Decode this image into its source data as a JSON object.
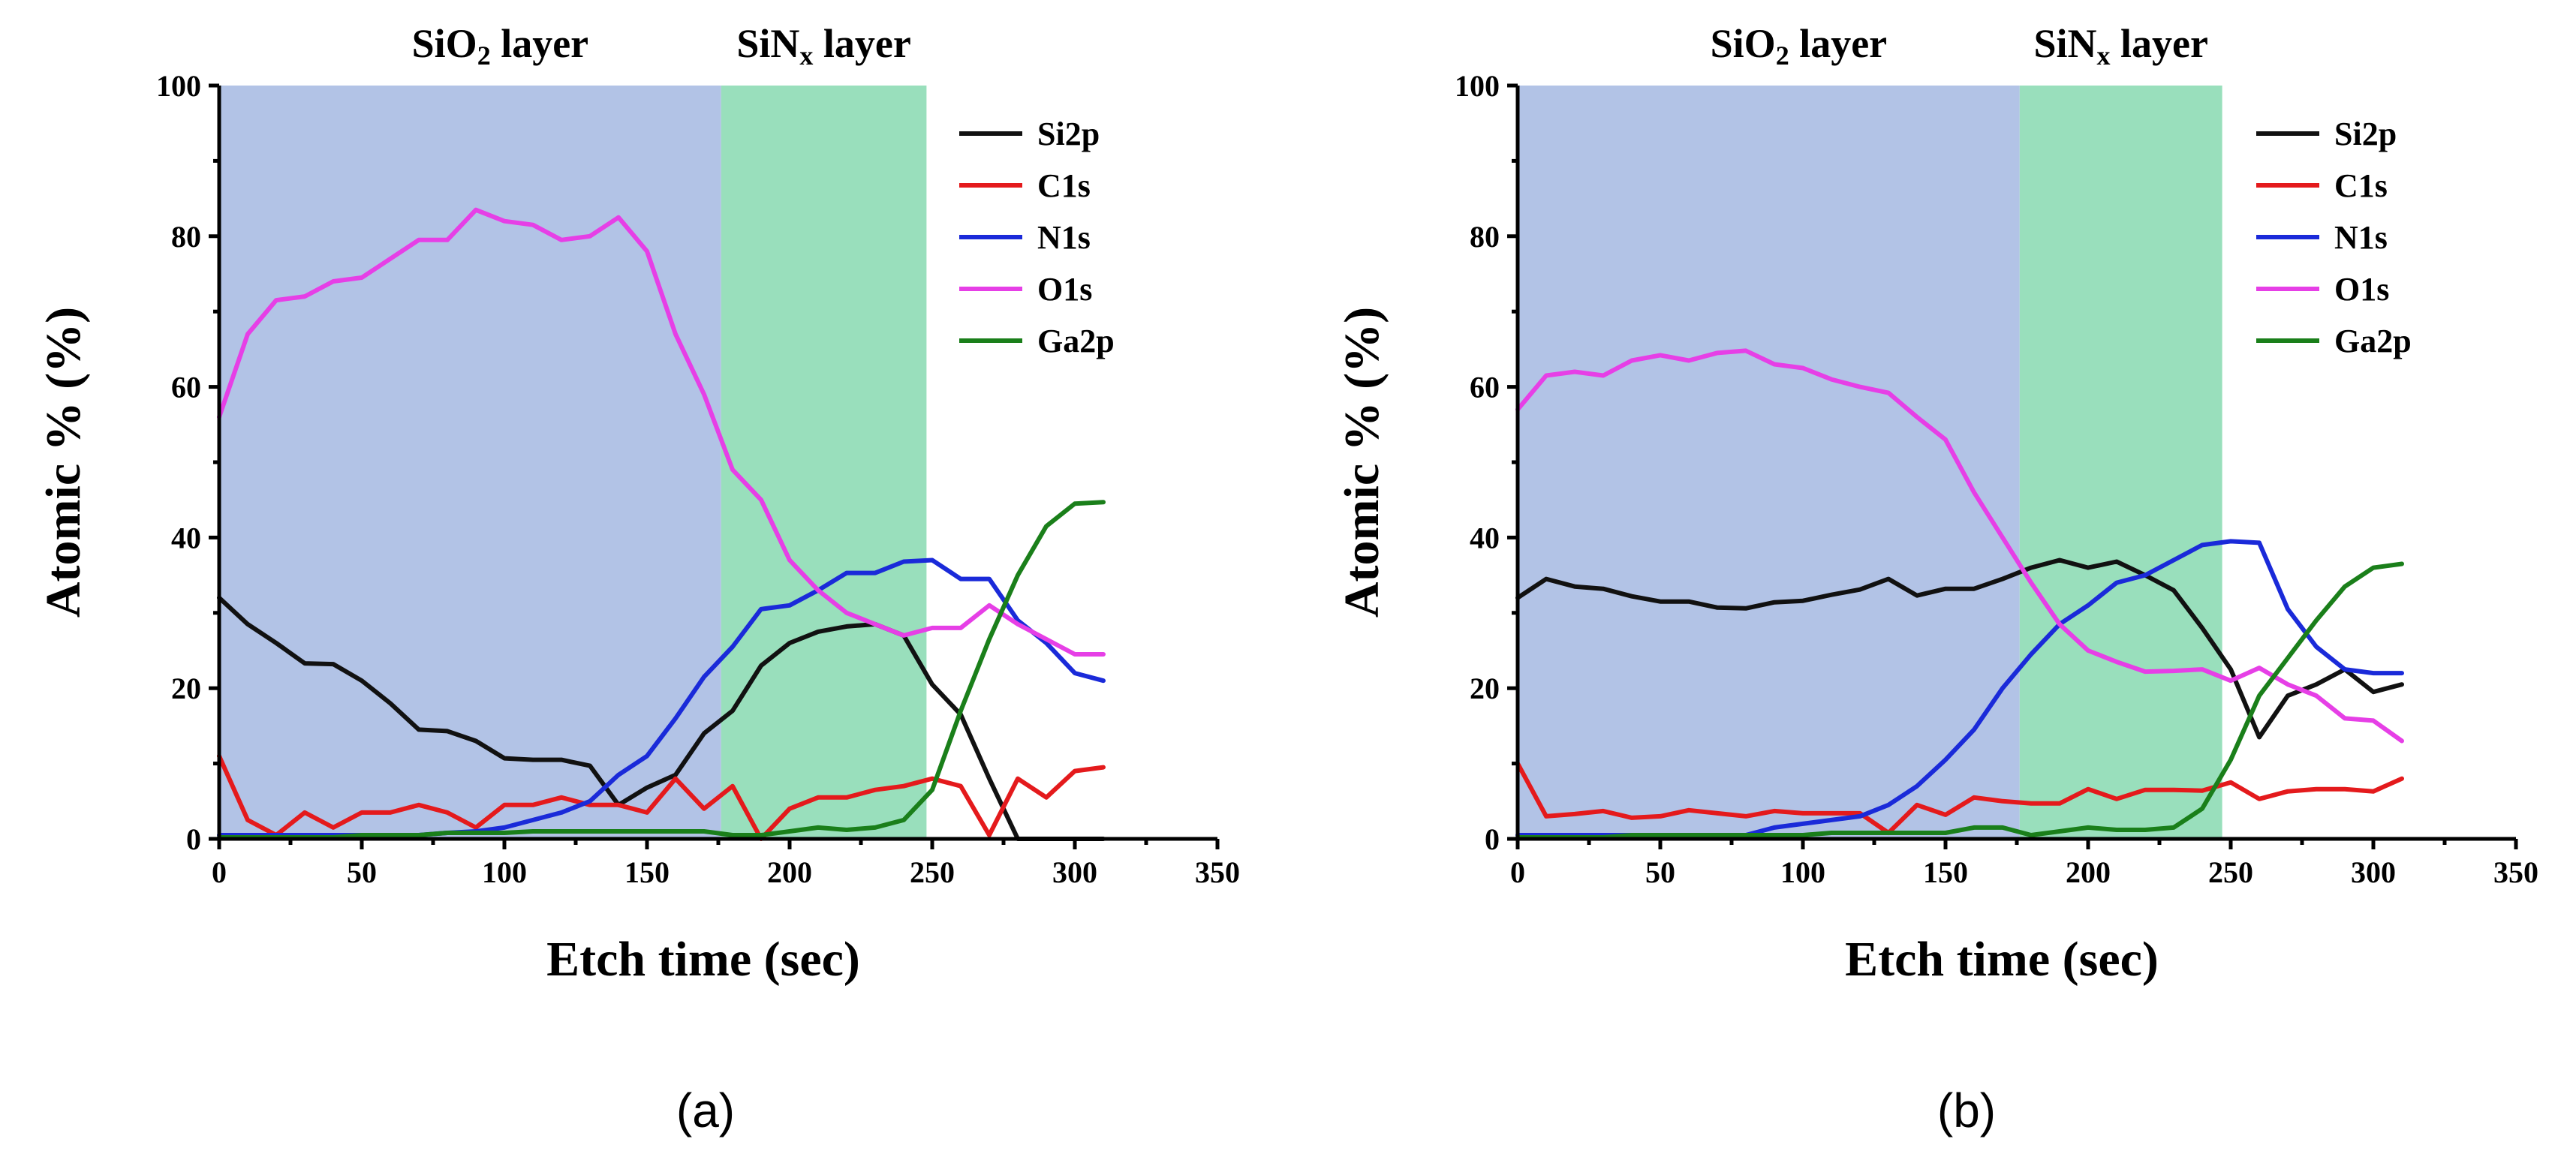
{
  "chart_data": [
    {
      "type": "line",
      "panel_label": "(a)",
      "xlabel": "Etch time (sec)",
      "ylabel": "Atomic % (%)",
      "xlim": [
        0,
        350
      ],
      "ylim": [
        0,
        100
      ],
      "xticks": [
        "0",
        "50",
        "100",
        "150",
        "200",
        "250",
        "300",
        "350"
      ],
      "yticks": [
        "0",
        "20",
        "40",
        "60",
        "80",
        "100"
      ],
      "regions": [
        {
          "label": "SiO",
          "sub": "2",
          "suffix": " layer",
          "x0": 0,
          "x1": 176,
          "color": "#b2c3e6"
        },
        {
          "label": "SiN",
          "sub": "x",
          "suffix": " layer",
          "x0": 176,
          "x1": 248,
          "color": "#99dfbc"
        }
      ],
      "legend_position": "top-right",
      "x": [
        0,
        10,
        20,
        30,
        40,
        50,
        60,
        70,
        80,
        90,
        100,
        110,
        120,
        130,
        140,
        150,
        160,
        170,
        180,
        190,
        200,
        210,
        220,
        230,
        240,
        250,
        260,
        270,
        280,
        290,
        300,
        310
      ],
      "series": [
        {
          "name": "Si2p",
          "color": "#111111",
          "values": [
            32,
            28.5,
            26,
            23.3,
            23.2,
            21,
            18,
            14.5,
            14.3,
            13,
            10.7,
            10.5,
            10.5,
            9.7,
            4.5,
            6.8,
            8.5,
            14,
            17,
            23,
            26,
            27.5,
            28.2,
            28.5,
            27,
            20.5,
            16.5,
            8,
            0,
            0,
            0,
            0
          ]
        },
        {
          "name": "C1s",
          "color": "#e41a1c",
          "values": [
            11,
            2.5,
            0.5,
            3.5,
            1.5,
            3.5,
            3.5,
            4.5,
            3.5,
            1.5,
            4.5,
            4.5,
            5.5,
            4.5,
            4.5,
            3.5,
            8,
            4,
            7,
            0,
            4,
            5.5,
            5.5,
            6.5,
            7,
            8,
            7,
            0.5,
            8,
            5.5,
            9,
            9.5
          ]
        },
        {
          "name": "N1s",
          "color": "#1a2ad9",
          "values": [
            0.5,
            0.5,
            0.5,
            0.5,
            0.5,
            0.5,
            0.5,
            0.5,
            0.8,
            1,
            1.5,
            2.5,
            3.5,
            5,
            8.5,
            11,
            16,
            21.5,
            25.5,
            30.5,
            31,
            33,
            35.3,
            35.3,
            36.8,
            37,
            34.5,
            34.5,
            29,
            26,
            22,
            21
          ]
        },
        {
          "name": "O1s",
          "color": "#e63fe6",
          "values": [
            56,
            67,
            71.5,
            72,
            74,
            74.5,
            77,
            79.5,
            79.5,
            83.5,
            82,
            81.5,
            79.5,
            80,
            82.5,
            78,
            67,
            59,
            49,
            45,
            37,
            33,
            30,
            28.5,
            27,
            28,
            28,
            31,
            28.5,
            26.5,
            24.5,
            24.5
          ]
        },
        {
          "name": "Ga2p",
          "color": "#1a7f1a",
          "values": [
            0.2,
            0.2,
            0.2,
            0.2,
            0.2,
            0.5,
            0.5,
            0.5,
            0.8,
            0.8,
            0.8,
            1,
            1,
            1,
            1,
            1,
            1,
            1,
            0.5,
            0.5,
            1,
            1.5,
            1.2,
            1.5,
            2.5,
            6.5,
            17,
            26.5,
            35,
            41.5,
            44.5,
            44.7
          ]
        }
      ]
    },
    {
      "type": "line",
      "panel_label": "(b)",
      "xlabel": "Etch time (sec)",
      "ylabel": "Atomic % (%)",
      "xlim": [
        0,
        350
      ],
      "ylim": [
        0,
        100
      ],
      "xticks": [
        "0",
        "50",
        "100",
        "150",
        "200",
        "250",
        "300",
        "350"
      ],
      "yticks": [
        "0",
        "20",
        "40",
        "60",
        "80",
        "100"
      ],
      "regions": [
        {
          "label": "SiO",
          "sub": "2",
          "suffix": " layer",
          "x0": 0,
          "x1": 176,
          "color": "#b2c3e6"
        },
        {
          "label": "SiN",
          "sub": "x",
          "suffix": " layer",
          "x0": 176,
          "x1": 247,
          "color": "#99dfbc"
        }
      ],
      "legend_position": "top-right",
      "x": [
        0,
        10,
        20,
        30,
        40,
        50,
        60,
        70,
        80,
        90,
        100,
        110,
        120,
        130,
        140,
        150,
        160,
        170,
        180,
        190,
        200,
        210,
        220,
        230,
        240,
        250,
        260,
        270,
        280,
        290,
        300,
        310
      ],
      "series": [
        {
          "name": "Si2p",
          "color": "#111111",
          "values": [
            32,
            34.5,
            33.5,
            33.2,
            32.2,
            31.5,
            31.5,
            30.7,
            30.6,
            31.4,
            31.6,
            32.4,
            33.1,
            34.5,
            32.3,
            33.2,
            33.2,
            34.5,
            36,
            37,
            36,
            36.8,
            35,
            33,
            28,
            22.5,
            13.5,
            19,
            20.5,
            22.5,
            19.5,
            20.5
          ]
        },
        {
          "name": "C1s",
          "color": "#e41a1c",
          "values": [
            10,
            3,
            3.3,
            3.7,
            2.8,
            3,
            3.8,
            3.4,
            3,
            3.7,
            3.4,
            3.4,
            3.4,
            0.8,
            4.5,
            3.2,
            5.5,
            5,
            4.7,
            4.7,
            6.6,
            5.3,
            6.5,
            6.5,
            6.4,
            7.5,
            5.3,
            6.3,
            6.6,
            6.6,
            6.3,
            8
          ]
        },
        {
          "name": "N1s",
          "color": "#1a2ad9",
          "values": [
            0.5,
            0.5,
            0.5,
            0.5,
            0.5,
            0.5,
            0.5,
            0.5,
            0.5,
            1.5,
            2,
            2.5,
            3,
            4.5,
            7,
            10.5,
            14.5,
            20,
            24.5,
            28.5,
            31,
            34,
            35,
            37,
            39,
            39.5,
            39.3,
            30.5,
            25.5,
            22.5,
            22,
            22
          ]
        },
        {
          "name": "O1s",
          "color": "#e63fe6",
          "values": [
            57,
            61.5,
            62,
            61.5,
            63.5,
            64.2,
            63.5,
            64.5,
            64.8,
            63,
            62.5,
            61,
            60,
            59.2,
            56,
            53,
            46,
            40,
            34,
            28.5,
            25,
            23.5,
            22.2,
            22.3,
            22.5,
            21,
            22.7,
            20.5,
            19,
            16,
            15.7,
            13
          ]
        },
        {
          "name": "Ga2p",
          "color": "#1a7f1a",
          "values": [
            0.2,
            0.2,
            0.2,
            0.2,
            0.5,
            0.5,
            0.5,
            0.5,
            0.5,
            0.5,
            0.5,
            0.8,
            0.8,
            0.8,
            0.8,
            0.8,
            1.5,
            1.5,
            0.5,
            1,
            1.5,
            1.2,
            1.2,
            1.5,
            4,
            10.5,
            19,
            24,
            29,
            33.5,
            36,
            36.5
          ]
        }
      ]
    }
  ]
}
